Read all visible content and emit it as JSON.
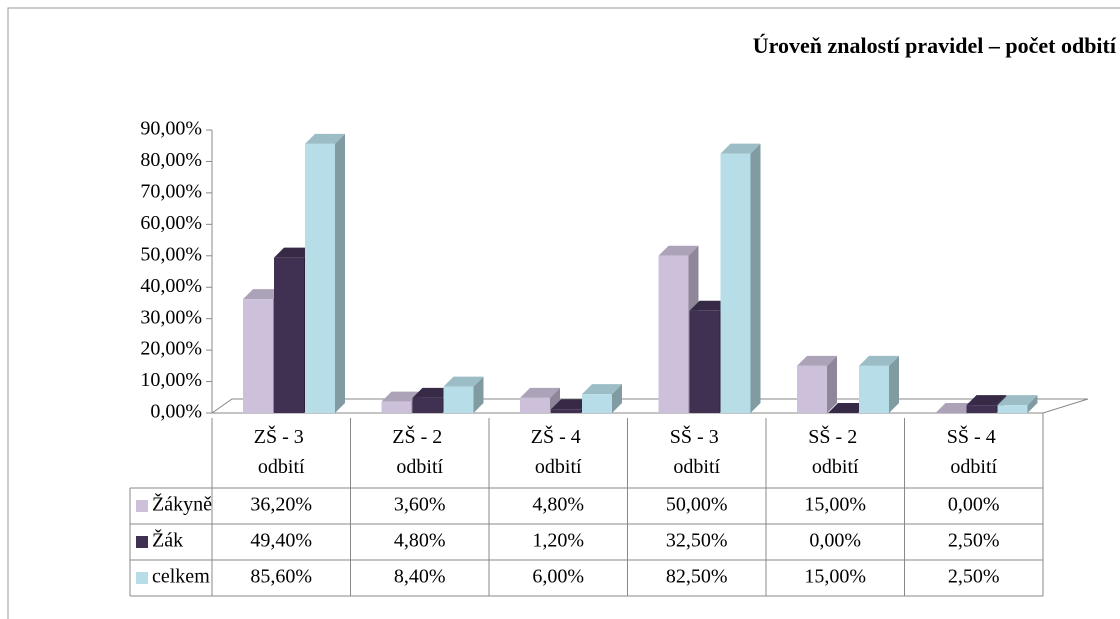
{
  "chart_data": {
    "type": "bar3d",
    "title": "Úroveň znalostí pravidel – počet odbití",
    "categories": [
      "ZŠ - 3 odbití",
      "ZŠ - 2 odbití",
      "ZŠ - 4 odbití",
      "SŠ - 3 odbití",
      "SŠ - 2 odbití",
      "SŠ - 4 odbití"
    ],
    "series": [
      {
        "name": "Žákyně",
        "color": "#ccc0da",
        "values": [
          36.2,
          3.6,
          4.8,
          50,
          15,
          0
        ],
        "value_labels": [
          "36,20%",
          "3,60%",
          "4,80%",
          "50,00%",
          "15,00%",
          "0,00%"
        ]
      },
      {
        "name": "Žák",
        "color": "#403152",
        "values": [
          49.4,
          4.8,
          1.2,
          32.5,
          0,
          2.5
        ],
        "value_labels": [
          "49,40%",
          "4,80%",
          "1,20%",
          "32,50%",
          "0,00%",
          "2,50%"
        ]
      },
      {
        "name": "celkem",
        "color": "#b7dee8",
        "values": [
          85.6,
          8.4,
          6,
          82.5,
          15,
          2.5
        ],
        "value_labels": [
          "85,60%",
          "8,40%",
          "6,00%",
          "82,50%",
          "15,00%",
          "2,50%"
        ]
      }
    ],
    "ylim": [
      0,
      90
    ],
    "yticks": [
      {
        "value": 0,
        "label": "0,00%"
      },
      {
        "value": 10,
        "label": "10,00%"
      },
      {
        "value": 20,
        "label": "20,00%"
      },
      {
        "value": 30,
        "label": "30,00%"
      },
      {
        "value": 40,
        "label": "40,00%"
      },
      {
        "value": 50,
        "label": "50,00%"
      },
      {
        "value": 60,
        "label": "60,00%"
      },
      {
        "value": 70,
        "label": "70,00%"
      },
      {
        "value": 80,
        "label": "80,00%"
      },
      {
        "value": 90,
        "label": "90,00%"
      }
    ],
    "data_table": true
  }
}
